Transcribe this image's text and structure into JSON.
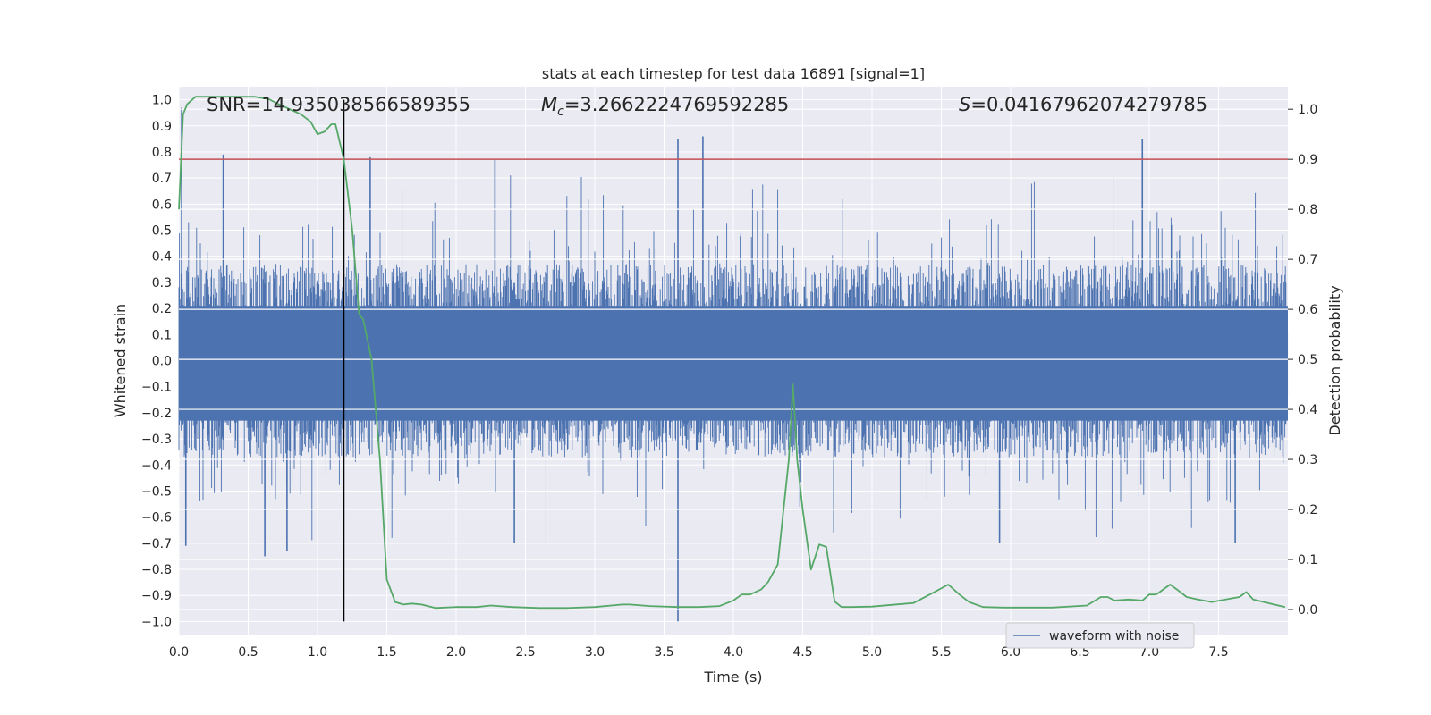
{
  "chart_data": {
    "type": "line",
    "title": "stats at each timestep for test data 16891 [signal=1]",
    "xlabel": "Time (s)",
    "ylabel_left": "Whitened strain",
    "ylabel_right": "Detection probability",
    "xlim": [
      0.0,
      8.0
    ],
    "ylim_left": [
      -1.05,
      1.05
    ],
    "ylim_right": [
      -0.05,
      1.045
    ],
    "grid": true,
    "x_ticks": [
      "0.0",
      "0.5",
      "1.0",
      "1.5",
      "2.0",
      "2.5",
      "3.0",
      "3.5",
      "4.0",
      "4.5",
      "5.0",
      "5.5",
      "6.0",
      "6.5",
      "7.0",
      "7.5"
    ],
    "y_left_ticks": [
      "1.0",
      "0.9",
      "0.8",
      "0.7",
      "0.6",
      "0.5",
      "0.4",
      "0.3",
      "0.2",
      "0.1",
      "0.0",
      "-0.1",
      "-0.2",
      "-0.3",
      "-0.4",
      "-0.5",
      "-0.6",
      "-0.7",
      "-0.8",
      "-0.9",
      "-1.0"
    ],
    "y_left_tick_values": [
      1.0,
      0.9,
      0.8,
      0.7,
      0.6,
      0.5,
      0.4,
      0.3,
      0.2,
      0.1,
      0.0,
      -0.1,
      -0.2,
      -0.3,
      -0.4,
      -0.5,
      -0.6,
      -0.7,
      -0.8,
      -0.9,
      -1.0
    ],
    "y_right_ticks": [
      "1.0",
      "0.9",
      "0.8",
      "0.7",
      "0.6",
      "0.5",
      "0.4",
      "0.3",
      "0.2",
      "0.1",
      "0.0"
    ],
    "y_right_tick_values": [
      1.0,
      0.9,
      0.8,
      0.7,
      0.6,
      0.5,
      0.4,
      0.3,
      0.2,
      0.1,
      0.0
    ],
    "annotations": {
      "snr": "SNR=14.935038566589355",
      "mc_symbol": "M",
      "mc_sub": "c",
      "mc_value": "=3.2662224769592285",
      "s_symbol": "S",
      "s_value": "=0.04167962074279785"
    },
    "threshold": {
      "value": 0.9,
      "axis": "right",
      "color": "#c44e52"
    },
    "detection_time": {
      "x": 1.19,
      "color": "#000000"
    },
    "waveform": {
      "name": "waveform with noise",
      "color": "#4c72b0",
      "core_amplitude": 0.37,
      "spikes": [
        {
          "x": 0.02,
          "y": 0.97
        },
        {
          "x": 0.32,
          "y": 0.79
        },
        {
          "x": 0.62,
          "y": -0.75
        },
        {
          "x": 0.78,
          "y": -0.73
        },
        {
          "x": 1.38,
          "y": 0.78
        },
        {
          "x": 2.28,
          "y": 0.77
        },
        {
          "x": 2.42,
          "y": -0.7
        },
        {
          "x": 3.6,
          "y": 0.85
        },
        {
          "x": 3.6,
          "y": -1.0
        },
        {
          "x": 3.78,
          "y": 0.86
        },
        {
          "x": 5.92,
          "y": -0.7
        },
        {
          "x": 6.95,
          "y": 0.85
        },
        {
          "x": 7.62,
          "y": -0.7
        },
        {
          "x": 0.05,
          "y": -0.71
        }
      ]
    },
    "detection_probability": {
      "color": "#55a868",
      "x": [
        0.0,
        0.03,
        0.06,
        0.12,
        0.25,
        0.4,
        0.55,
        0.65,
        0.72,
        0.8,
        0.88,
        0.95,
        1.0,
        1.05,
        1.1,
        1.13,
        1.19,
        1.25,
        1.3,
        1.33,
        1.39,
        1.45,
        1.5,
        1.56,
        1.62,
        1.68,
        1.75,
        1.85,
        2.0,
        2.15,
        2.25,
        2.4,
        2.6,
        2.8,
        3.0,
        3.2,
        3.25,
        3.4,
        3.6,
        3.75,
        3.9,
        4.0,
        4.06,
        4.12,
        4.2,
        4.25,
        4.32,
        4.4,
        4.43,
        4.46,
        4.5,
        4.56,
        4.62,
        4.67,
        4.73,
        4.78,
        4.85,
        5.0,
        5.3,
        5.45,
        5.55,
        5.63,
        5.7,
        5.8,
        5.95,
        6.3,
        6.55,
        6.65,
        6.7,
        6.75,
        6.85,
        6.95,
        7.0,
        7.05,
        7.1,
        7.15,
        7.2,
        7.27,
        7.35,
        7.45,
        7.55,
        7.65,
        7.7,
        7.75,
        7.9,
        7.98
      ],
      "y": [
        0.8,
        0.99,
        1.01,
        1.025,
        1.025,
        1.025,
        1.025,
        1.02,
        1.01,
        1.0,
        0.99,
        0.975,
        0.95,
        0.955,
        0.97,
        0.97,
        0.9,
        0.76,
        0.59,
        0.58,
        0.5,
        0.3,
        0.06,
        0.015,
        0.01,
        0.012,
        0.01,
        0.003,
        0.005,
        0.005,
        0.008,
        0.005,
        0.003,
        0.003,
        0.005,
        0.01,
        0.01,
        0.007,
        0.005,
        0.005,
        0.007,
        0.018,
        0.03,
        0.03,
        0.04,
        0.055,
        0.09,
        0.3,
        0.45,
        0.3,
        0.2,
        0.08,
        0.13,
        0.125,
        0.016,
        0.005,
        0.005,
        0.006,
        0.013,
        0.035,
        0.05,
        0.03,
        0.015,
        0.005,
        0.004,
        0.004,
        0.008,
        0.025,
        0.025,
        0.018,
        0.02,
        0.018,
        0.03,
        0.03,
        0.04,
        0.05,
        0.04,
        0.025,
        0.02,
        0.015,
        0.02,
        0.025,
        0.035,
        0.02,
        0.01,
        0.005
      ]
    },
    "legend": {
      "entry": "waveform with noise",
      "position": "lower-right"
    }
  }
}
